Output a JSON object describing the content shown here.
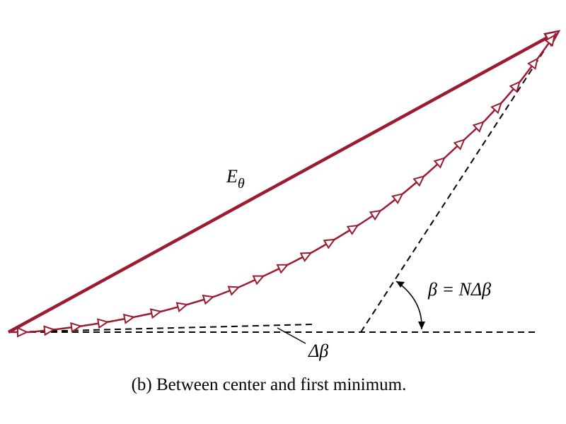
{
  "labels": {
    "resultant": {
      "symbol": "E",
      "subscript": "θ"
    },
    "total_angle": "β = NΔβ",
    "step_angle": "Δβ"
  },
  "caption": "(b) Between center and first minimum."
}
